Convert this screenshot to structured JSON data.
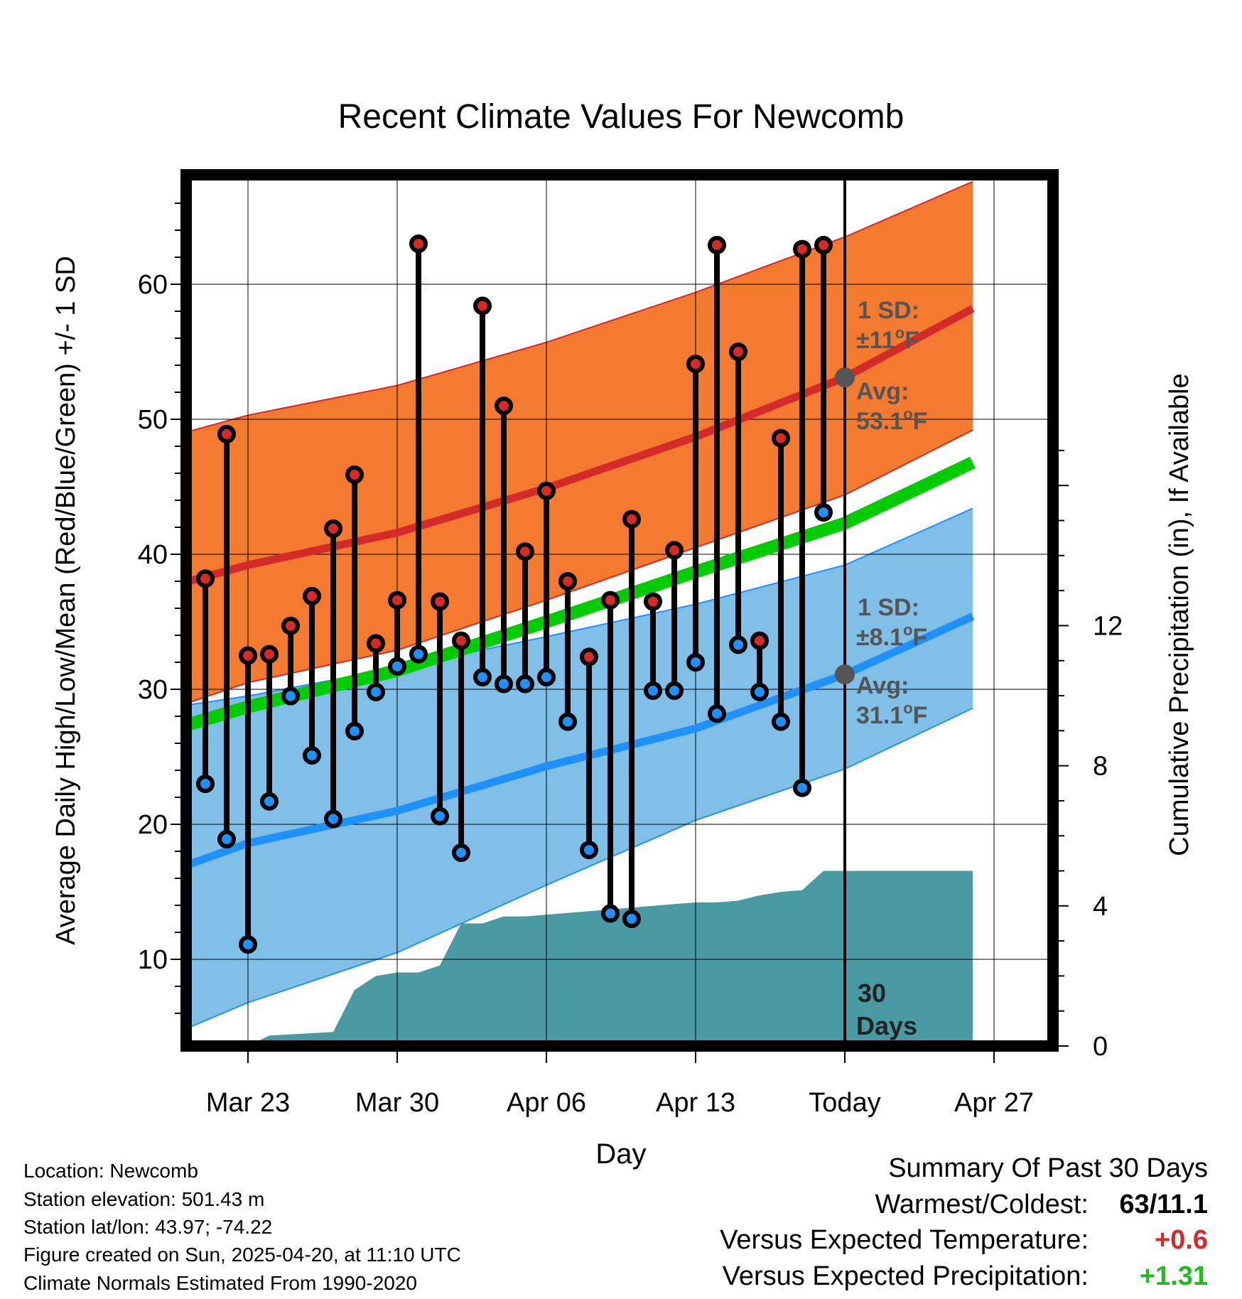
{
  "chart_data": {
    "type": "line",
    "title": "Recent Climate Values For Newcomb",
    "xlabel": "Day",
    "ylabel": "Average Daily High/Low/Mean (Red/Blue/Green) +/- 1 SD",
    "y2label": "Cumulative Precipitation (in), If Available",
    "xlim": [
      -4,
      35
    ],
    "ylim": [
      3,
      68
    ],
    "y2lim": [
      0,
      17.8
    ],
    "grid": true,
    "x_ticks": [
      {
        "x": 0,
        "label": "Mar 23"
      },
      {
        "x": 7,
        "label": "Mar 30"
      },
      {
        "x": 14,
        "label": "Apr 06"
      },
      {
        "x": 21,
        "label": "Apr 13"
      },
      {
        "x": 28,
        "label": "Today"
      },
      {
        "x": 35,
        "label": "Apr 27"
      }
    ],
    "y_ticks": [
      10,
      20,
      30,
      40,
      50,
      60
    ],
    "y2_ticks": [
      0,
      4,
      8,
      12
    ],
    "colors": {
      "high": "#d42a2a",
      "low": "#1e90ff",
      "mean": "#00cc00",
      "high_band": "#f47a30",
      "low_band": "#80c0e8",
      "precip": "#4a9aa4"
    },
    "dates": [
      "Mar 21",
      "Mar 22",
      "Mar 23",
      "Mar 24",
      "Mar 25",
      "Mar 26",
      "Mar 27",
      "Mar 28",
      "Mar 29",
      "Mar 30",
      "Mar 31",
      "Apr 01",
      "Apr 02",
      "Apr 03",
      "Apr 04",
      "Apr 05",
      "Apr 06",
      "Apr 07",
      "Apr 08",
      "Apr 09",
      "Apr 10",
      "Apr 11",
      "Apr 12",
      "Apr 13",
      "Apr 14",
      "Apr 15",
      "Apr 16",
      "Apr 17",
      "Apr 18",
      "Apr 19"
    ],
    "observed_high": [
      38.2,
      48.9,
      32.5,
      32.6,
      34.7,
      36.9,
      41.9,
      45.9,
      33.4,
      36.6,
      63.0,
      36.5,
      33.6,
      58.4,
      51.0,
      40.2,
      44.7,
      38.0,
      32.4,
      36.6,
      42.6,
      36.5,
      40.3,
      54.1,
      62.9,
      55.0,
      33.6,
      48.6,
      62.6,
      62.9
    ],
    "observed_low": [
      23.0,
      18.9,
      11.1,
      21.7,
      29.5,
      25.1,
      20.4,
      26.9,
      29.8,
      31.7,
      32.6,
      20.6,
      17.9,
      30.9,
      30.4,
      30.4,
      30.9,
      27.6,
      18.1,
      13.4,
      13.0,
      29.9,
      29.9,
      32.0,
      28.2,
      33.3,
      29.8,
      27.6,
      22.7,
      43.1
    ],
    "normal_curves": {
      "x": [
        -3,
        0,
        7,
        14,
        21,
        28,
        34
      ],
      "high_upper": [
        49.0,
        50.3,
        52.5,
        55.7,
        59.4,
        63.5,
        67.6
      ],
      "high_mean": [
        37.9,
        39.2,
        41.6,
        44.9,
        48.7,
        53.1,
        58.2
      ],
      "high_lower": [
        28.9,
        30.5,
        32.9,
        36.6,
        40.5,
        44.4,
        49.2
      ],
      "normal_mean": [
        27.3,
        28.7,
        31.4,
        35.0,
        38.7,
        42.3,
        46.8
      ],
      "low_upper": [
        28.8,
        29.5,
        31.6,
        33.9,
        36.3,
        39.2,
        43.4
      ],
      "low_mean": [
        16.9,
        18.6,
        21.0,
        24.3,
        27.1,
        31.1,
        35.4
      ],
      "low_lower": [
        4.8,
        6.8,
        10.5,
        15.5,
        20.3,
        24.1,
        28.6
      ]
    },
    "precip_cumulative": {
      "x": [
        -3,
        0,
        1,
        4,
        5,
        6,
        7,
        8,
        9,
        10,
        11,
        12,
        13,
        14,
        15,
        16,
        17,
        18,
        19,
        20,
        21,
        22,
        23,
        24,
        25,
        26,
        27,
        34
      ],
      "values": [
        0,
        0,
        0.3,
        0.4,
        1.6,
        2.0,
        2.1,
        2.1,
        2.3,
        3.5,
        3.5,
        3.7,
        3.7,
        3.75,
        3.8,
        3.85,
        3.9,
        3.95,
        4.0,
        4.05,
        4.1,
        4.1,
        4.15,
        4.3,
        4.4,
        4.45,
        5.0,
        5.0
      ]
    },
    "annotations": {
      "high_sd_label": "1 SD:",
      "high_sd_value": "±11",
      "high_avg_label": "Avg:",
      "high_avg_value": "53.1",
      "low_sd_label": "1 SD:",
      "low_sd_value": "±8.1",
      "low_avg_label": "Avg:",
      "low_avg_value": "31.1",
      "degree_sup": "o",
      "unit": "F",
      "window_label_1": "30",
      "window_label_2": "Days"
    }
  },
  "footer": {
    "location": "Location: Newcomb",
    "elevation": "Station elevation: 501.43 m",
    "latlon": "Station lat/lon: 43.97; -74.22",
    "created": "Figure created on Sun, 2025-04-20, at 11:10 UTC",
    "normals": "Climate Normals Estimated From 1990-2020"
  },
  "summary": {
    "title": "Summary Of Past 30 Days",
    "warmest_label": "Warmest/Coldest:",
    "warmest_value": "63/11.1",
    "temp_label": "Versus Expected Temperature:",
    "temp_value": "+0.6",
    "temp_color": "#d42a2a",
    "precip_label": "Versus Expected Precipitation:",
    "precip_value": "+1.31",
    "precip_color": "#22bb22"
  }
}
